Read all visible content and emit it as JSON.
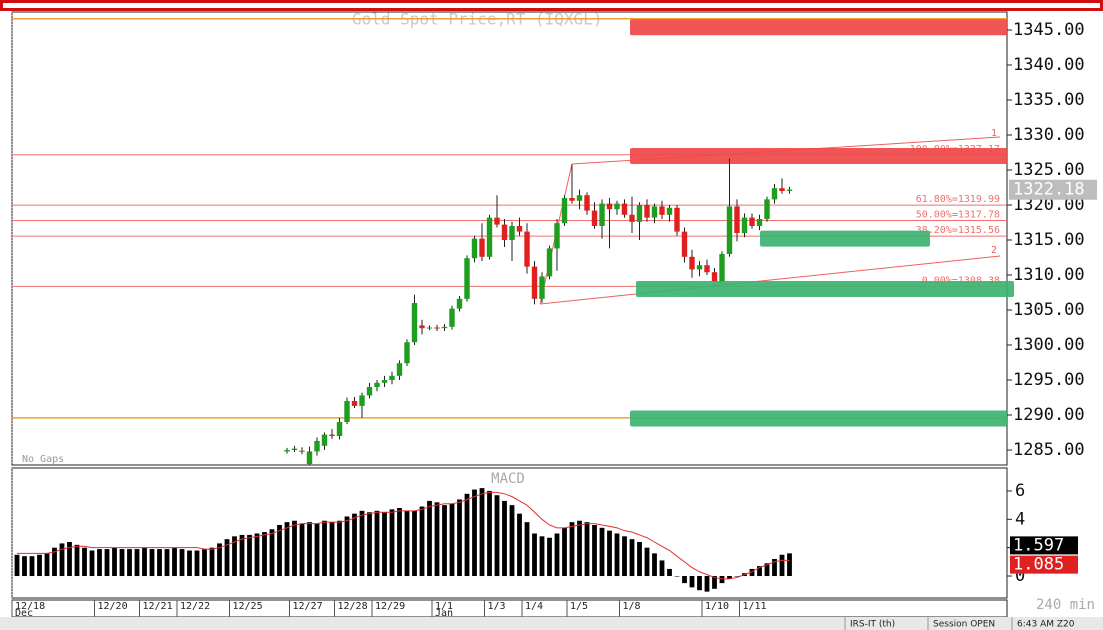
{
  "chart_data": {
    "type": "candlestick",
    "title": "Gold Spot Price,RT (IQXGL)",
    "categories": [
      "12/18",
      null,
      null,
      null,
      null,
      null,
      null,
      null,
      null,
      null,
      null,
      "12/20",
      null,
      null,
      null,
      null,
      null,
      "12/21",
      null,
      null,
      null,
      null,
      "12/22",
      null,
      null,
      null,
      null,
      null,
      null,
      "12/25",
      null,
      null,
      null,
      null,
      null,
      null,
      null,
      "12/27",
      null,
      null,
      null,
      null,
      null,
      "12/28",
      null,
      null,
      null,
      null,
      "12/29",
      null,
      null,
      null,
      null,
      null,
      null,
      null,
      "1/1",
      null,
      null,
      null,
      null,
      null,
      null,
      "1/3",
      null,
      null,
      null,
      null,
      "1/4",
      null,
      null,
      null,
      null,
      null,
      "1/5",
      null,
      null,
      null,
      null,
      null,
      null,
      "1/8",
      null,
      null,
      null,
      null,
      null,
      null,
      null,
      null,
      null,
      null,
      "1/10",
      null,
      null,
      null,
      null,
      "1/11",
      null,
      null,
      null,
      null,
      null,
      null
    ],
    "months": [
      "Dec",
      null,
      null,
      null,
      null,
      null,
      null,
      null,
      null,
      null,
      null,
      null,
      null,
      null,
      null,
      null,
      null,
      null,
      null,
      null,
      null,
      null,
      null,
      null,
      null,
      null,
      null,
      null,
      null,
      null,
      null,
      null,
      null,
      null,
      null,
      null,
      null,
      null,
      null,
      null,
      null,
      null,
      null,
      null,
      null,
      null,
      null,
      null,
      null,
      null,
      null,
      null,
      null,
      null,
      null,
      null,
      "Jan",
      null,
      null,
      null,
      null,
      null,
      null,
      null,
      null,
      null,
      null,
      null,
      null,
      null,
      null,
      null,
      null,
      null,
      null,
      null,
      null,
      null,
      null,
      null,
      null,
      null,
      null,
      null,
      null,
      null,
      null,
      null,
      null,
      null,
      null,
      null,
      null,
      null,
      null,
      null,
      null,
      null,
      null,
      null,
      null,
      null,
      null,
      null
    ],
    "open": [
      null,
      null,
      null,
      null,
      null,
      null,
      null,
      null,
      null,
      null,
      null,
      null,
      null,
      null,
      null,
      null,
      null,
      null,
      null,
      null,
      null,
      null,
      null,
      null,
      null,
      null,
      null,
      null,
      null,
      null,
      null,
      null,
      null,
      null,
      null,
      null,
      1284.8,
      1285.0,
      1284.9,
      1283.0,
      1284.8,
      1285.6,
      1287.2,
      1287.0,
      1289.0,
      1292.0,
      1291.3,
      1292.8,
      1294.0,
      1294.6,
      1295.0,
      1295.6,
      1297.4,
      1300.4,
      1302.8,
      1302.4,
      1302.5,
      1302.4,
      1302.6,
      1305.2,
      1306.6,
      1312.4,
      1315.2,
      1312.6,
      1318.2,
      1317.2,
      1315.0,
      1317.0,
      1316.2,
      1311.2,
      1306.6,
      1309.8,
      1313.8,
      1317.4,
      1321.0,
      1320.6,
      1321.4,
      1319.2,
      1317.0,
      1320.2,
      1319.4,
      1320.2,
      1318.6,
      1317.6,
      1320.0,
      1318.2,
      1319.8,
      1318.6,
      1319.6,
      1316.2,
      1312.6,
      1310.8,
      1311.4,
      1310.4,
      1309.0,
      1313.0,
      1319.8,
      1316.0,
      1318.2,
      1317.0,
      1318.0,
      1320.8,
      1322.4,
      1322.0
    ],
    "high": [
      null,
      null,
      null,
      null,
      null,
      null,
      null,
      null,
      null,
      null,
      null,
      null,
      null,
      null,
      null,
      null,
      null,
      null,
      null,
      null,
      null,
      null,
      null,
      null,
      null,
      null,
      null,
      null,
      null,
      null,
      null,
      null,
      null,
      null,
      null,
      null,
      1285.3,
      1285.6,
      1285.4,
      1285.5,
      1286.8,
      1287.5,
      1288.0,
      1289.6,
      1292.5,
      1292.6,
      1293.2,
      1294.6,
      1295.0,
      1295.6,
      1296.2,
      1297.8,
      1300.8,
      1307.2,
      1303.6,
      1302.8,
      1302.9,
      1303.0,
      1305.6,
      1307.0,
      1312.8,
      1315.6,
      1317.4,
      1318.6,
      1321.4,
      1318.0,
      1317.6,
      1318.2,
      1317.4,
      1312.0,
      1310.4,
      1314.2,
      1318.0,
      1321.4,
      1325.8,
      1322.2,
      1321.8,
      1320.4,
      1320.8,
      1321.0,
      1320.6,
      1320.8,
      1321.2,
      1320.4,
      1320.8,
      1320.2,
      1320.6,
      1320.0,
      1320.0,
      1316.8,
      1313.6,
      1312.0,
      1312.2,
      1311.0,
      1313.4,
      1326.6,
      1320.8,
      1318.8,
      1318.8,
      1318.6,
      1321.2,
      1323.0,
      1323.8,
      1322.6
    ],
    "low": [
      null,
      null,
      null,
      null,
      null,
      null,
      null,
      null,
      null,
      null,
      null,
      null,
      null,
      null,
      null,
      null,
      null,
      null,
      null,
      null,
      null,
      null,
      null,
      null,
      null,
      null,
      null,
      null,
      null,
      null,
      null,
      null,
      null,
      null,
      null,
      null,
      1284.5,
      1284.7,
      1284.4,
      1282.5,
      1284.2,
      1285.0,
      1286.6,
      1286.5,
      1288.7,
      1291.0,
      1289.6,
      1292.4,
      1293.4,
      1294.0,
      1294.4,
      1295.0,
      1297.0,
      1300.0,
      1301.5,
      1302.1,
      1302.0,
      1302.0,
      1302.2,
      1304.8,
      1306.2,
      1311.8,
      1312.0,
      1312.2,
      1316.8,
      1314.0,
      1312.0,
      1315.6,
      1310.2,
      1305.8,
      1306.0,
      1309.4,
      1310.6,
      1317.0,
      1320.2,
      1319.4,
      1318.6,
      1316.6,
      1315.2,
      1313.8,
      1318.6,
      1318.2,
      1316.0,
      1315.0,
      1317.6,
      1317.4,
      1318.0,
      1317.6,
      1315.6,
      1311.8,
      1309.6,
      1309.8,
      1310.0,
      1308.6,
      1308.8,
      1312.6,
      1314.8,
      1315.4,
      1316.6,
      1316.4,
      1317.6,
      1320.2,
      1321.6,
      1321.6
    ],
    "close": [
      null,
      null,
      null,
      null,
      null,
      null,
      null,
      null,
      null,
      null,
      null,
      null,
      null,
      null,
      null,
      null,
      null,
      null,
      null,
      null,
      null,
      null,
      null,
      null,
      null,
      null,
      null,
      null,
      null,
      null,
      null,
      null,
      null,
      null,
      null,
      null,
      1285.0,
      1285.2,
      1284.8,
      1284.8,
      1286.3,
      1287.2,
      1287.0,
      1289.0,
      1292.0,
      1291.3,
      1292.8,
      1294.0,
      1294.6,
      1295.0,
      1295.6,
      1297.4,
      1300.4,
      1306.0,
      1302.4,
      1302.5,
      1302.4,
      1302.6,
      1305.2,
      1306.6,
      1312.4,
      1315.2,
      1312.6,
      1318.2,
      1317.2,
      1315.0,
      1317.0,
      1316.2,
      1311.2,
      1306.6,
      1309.8,
      1313.8,
      1317.4,
      1321.0,
      1320.6,
      1321.4,
      1319.2,
      1317.0,
      1320.2,
      1319.4,
      1320.2,
      1318.6,
      1317.6,
      1320.0,
      1318.2,
      1319.8,
      1318.6,
      1319.6,
      1316.2,
      1312.6,
      1310.8,
      1311.4,
      1310.4,
      1309.0,
      1313.0,
      1319.8,
      1316.0,
      1318.2,
      1317.0,
      1318.0,
      1320.8,
      1322.4,
      1322.0,
      1322.2
    ],
    "up_color": "#1e9e1e",
    "down_color": "#e02020",
    "last_price": 1322.18,
    "ylim": [
      1282.86,
      1347.57
    ],
    "yticks": [
      {
        "value": 1285,
        "label": "1285.00"
      },
      {
        "value": 1290,
        "label": "1290.00"
      },
      {
        "value": 1295,
        "label": "1295.00"
      },
      {
        "value": 1300,
        "label": "1300.00"
      },
      {
        "value": 1305,
        "label": "1305.00"
      },
      {
        "value": 1310,
        "label": "1310.00"
      },
      {
        "value": 1315,
        "label": "1315.00"
      },
      {
        "value": 1320,
        "label": "1320.00"
      },
      {
        "value": 1325,
        "label": "1325.00"
      },
      {
        "value": 1330,
        "label": "1330.00"
      },
      {
        "value": 1335,
        "label": "1335.00"
      },
      {
        "value": 1340,
        "label": "1340.00"
      },
      {
        "value": 1345,
        "label": "1345.00"
      }
    ],
    "levels": [
      {
        "value": 1346.6,
        "color": "#f0a030"
      },
      {
        "value": 1327.17,
        "label": "100.00%=1327.17",
        "color": "#f07070"
      },
      {
        "value": 1319.99,
        "label": "61.80%=1319.99",
        "color": "#f07070"
      },
      {
        "value": 1317.78,
        "label": "50.00%=1317.78",
        "color": "#f07070"
      },
      {
        "value": 1315.56,
        "label": "38.20%=1315.56",
        "color": "#f07070"
      },
      {
        "value": 1308.38,
        "label": "0.00%=1308.38",
        "color": "#f07070"
      },
      {
        "value": 1289.6,
        "color": "#f0a030"
      }
    ],
    "zones": [
      {
        "value": 1345.4,
        "color": "#f04848"
      },
      {
        "value": 1327.0,
        "color": "#f04848"
      },
      {
        "value": 1315.2,
        "color": "#3cb371"
      },
      {
        "value": 1308.0,
        "color": "#3cb371"
      },
      {
        "value": 1289.5,
        "color": "#3cb371"
      }
    ],
    "channel_labels": [
      "1",
      "2"
    ],
    "no_gaps": "No Gaps",
    "indicator": "MACD",
    "macd": [
      1.5,
      1.4,
      1.4,
      1.5,
      1.6,
      2.0,
      2.3,
      2.4,
      2.2,
      2.0,
      1.8,
      1.9,
      1.9,
      2.0,
      1.9,
      1.9,
      1.9,
      2.0,
      1.9,
      1.9,
      1.9,
      2.0,
      1.9,
      1.8,
      1.8,
      1.9,
      2.0,
      2.3,
      2.6,
      2.8,
      2.9,
      2.9,
      3.0,
      3.1,
      3.3,
      3.6,
      3.8,
      3.9,
      3.7,
      3.8,
      3.7,
      3.9,
      3.8,
      3.9,
      4.2,
      4.4,
      4.6,
      4.5,
      4.6,
      4.5,
      4.7,
      4.8,
      4.6,
      4.6,
      4.9,
      5.3,
      5.2,
      5.0,
      5.1,
      5.4,
      5.8,
      6.1,
      6.2,
      6.0,
      5.7,
      5.3,
      5.0,
      4.4,
      3.8,
      3.0,
      2.8,
      2.7,
      3.0,
      3.4,
      3.8,
      3.9,
      3.8,
      3.6,
      3.4,
      3.2,
      3.0,
      2.8,
      2.6,
      2.4,
      2.0,
      1.6,
      1.1,
      0.5,
      0.0,
      -0.5,
      -0.8,
      -1.0,
      -1.1,
      -0.9,
      -0.5,
      -0.2,
      0.0,
      0.2,
      0.5,
      0.7,
      0.9,
      1.2,
      1.5,
      1.6
    ],
    "signal": [
      1.6,
      1.6,
      1.6,
      1.6,
      1.6,
      1.7,
      1.9,
      2.0,
      2.1,
      2.1,
      2.0,
      2.0,
      2.0,
      2.0,
      2.0,
      2.0,
      2.0,
      2.0,
      2.0,
      2.0,
      2.0,
      2.0,
      2.0,
      2.0,
      2.0,
      1.9,
      1.9,
      2.0,
      2.2,
      2.4,
      2.6,
      2.7,
      2.8,
      2.9,
      3.0,
      3.2,
      3.4,
      3.6,
      3.7,
      3.7,
      3.7,
      3.8,
      3.8,
      3.8,
      3.9,
      4.1,
      4.3,
      4.4,
      4.5,
      4.5,
      4.5,
      4.6,
      4.6,
      4.6,
      4.7,
      4.9,
      5.0,
      5.1,
      5.1,
      5.2,
      5.4,
      5.6,
      5.8,
      5.9,
      5.9,
      5.8,
      5.6,
      5.3,
      5.0,
      4.5,
      4.0,
      3.6,
      3.4,
      3.4,
      3.5,
      3.6,
      3.7,
      3.7,
      3.6,
      3.5,
      3.4,
      3.2,
      3.1,
      2.9,
      2.7,
      2.4,
      2.1,
      1.8,
      1.4,
      1.0,
      0.6,
      0.3,
      0.1,
      -0.1,
      -0.2,
      -0.2,
      -0.1,
      0.1,
      0.3,
      0.6,
      0.8,
      1.0,
      1.1,
      1.1
    ],
    "macd_color": "#000000",
    "signal_color": "#e03030",
    "readouts": [
      {
        "value": 1.597,
        "color": "#000000"
      },
      {
        "value": 1.085,
        "color": "#e02020"
      }
    ],
    "y2lim": [
      -1.55,
      7.62
    ],
    "y2ticks": [
      0,
      2,
      4,
      6
    ],
    "interval": "240 min",
    "status": [
      "IRS-IT (th)",
      "Session OPEN",
      "6:43 AM Z20"
    ]
  }
}
